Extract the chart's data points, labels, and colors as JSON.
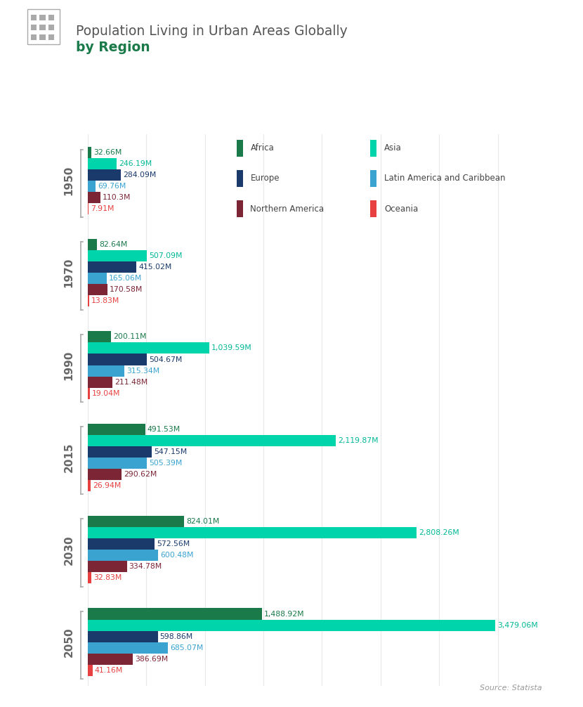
{
  "title_line1": "Population Living in Urban Areas Globally",
  "title_line2": "by Region",
  "source": "Source: Statista",
  "years": [
    "1950",
    "1970",
    "1990",
    "2015",
    "2030",
    "2050"
  ],
  "regions": [
    "Africa",
    "Asia",
    "Europe",
    "Latin America and Caribbean",
    "Northern America",
    "Oceania"
  ],
  "colors": {
    "Africa": "#1a7a4a",
    "Asia": "#00d4aa",
    "Europe": "#1a3a6b",
    "Latin America and Caribbean": "#3aa3d0",
    "Northern America": "#7b2535",
    "Oceania": "#e84040"
  },
  "label_colors": {
    "Africa": "#1a7a4a",
    "Asia": "#00b896",
    "Europe": "#1a3a6b",
    "Latin America and Caribbean": "#3aa3d0",
    "Northern America": "#7b2535",
    "Oceania": "#e84040"
  },
  "data": {
    "1950": {
      "Africa": 32.66,
      "Asia": 246.19,
      "Europe": 284.09,
      "Latin America and Caribbean": 69.76,
      "Northern America": 110.3,
      "Oceania": 7.91
    },
    "1970": {
      "Africa": 82.64,
      "Asia": 507.09,
      "Europe": 415.02,
      "Latin America and Caribbean": 165.06,
      "Northern America": 170.58,
      "Oceania": 13.83
    },
    "1990": {
      "Africa": 200.11,
      "Asia": 1039.59,
      "Europe": 504.67,
      "Latin America and Caribbean": 315.34,
      "Northern America": 211.48,
      "Oceania": 19.04
    },
    "2015": {
      "Africa": 491.53,
      "Asia": 2119.87,
      "Europe": 547.15,
      "Latin America and Caribbean": 505.39,
      "Northern America": 290.62,
      "Oceania": 26.94
    },
    "2030": {
      "Africa": 824.01,
      "Asia": 2808.26,
      "Europe": 572.56,
      "Latin America and Caribbean": 600.48,
      "Northern America": 334.78,
      "Oceania": 32.83
    },
    "2050": {
      "Africa": 1488.92,
      "Asia": 3479.06,
      "Europe": 598.86,
      "Latin America and Caribbean": 685.07,
      "Northern America": 386.69,
      "Oceania": 41.16
    }
  },
  "label_data": {
    "1950": {
      "Africa": "32.66M",
      "Asia": "246.19M",
      "Europe": "284.09M",
      "Latin America and Caribbean": "69.76M",
      "Northern America": "110.3M",
      "Oceania": "7.91M"
    },
    "1970": {
      "Africa": "82.64M",
      "Asia": "507.09M",
      "Europe": "415.02M",
      "Latin America and Caribbean": "165.06M",
      "Northern America": "170.58M",
      "Oceania": "13.83M"
    },
    "1990": {
      "Africa": "200.11M",
      "Asia": "1,039.59M",
      "Europe": "504.67M",
      "Latin America and Caribbean": "315.34M",
      "Northern America": "211.48M",
      "Oceania": "19.04M"
    },
    "2015": {
      "Africa": "491.53M",
      "Asia": "2,119.87M",
      "Europe": "547.15M",
      "Latin America and Caribbean": "505.39M",
      "Northern America": "290.62M",
      "Oceania": "26.94M"
    },
    "2030": {
      "Africa": "824.01M",
      "Asia": "2,808.26M",
      "Europe": "572.56M",
      "Latin America and Caribbean": "600.48M",
      "Northern America": "334.78M",
      "Oceania": "32.83M"
    },
    "2050": {
      "Africa": "1,488.92M",
      "Asia": "3,479.06M",
      "Europe": "598.86M",
      "Latin America and Caribbean": "685.07M",
      "Northern America": "386.69M",
      "Oceania": "41.16M"
    }
  },
  "bg_color": "#ffffff",
  "title_color1": "#555555",
  "title_color2": "#1a7a4a",
  "grid_color": "#e8e8e8"
}
